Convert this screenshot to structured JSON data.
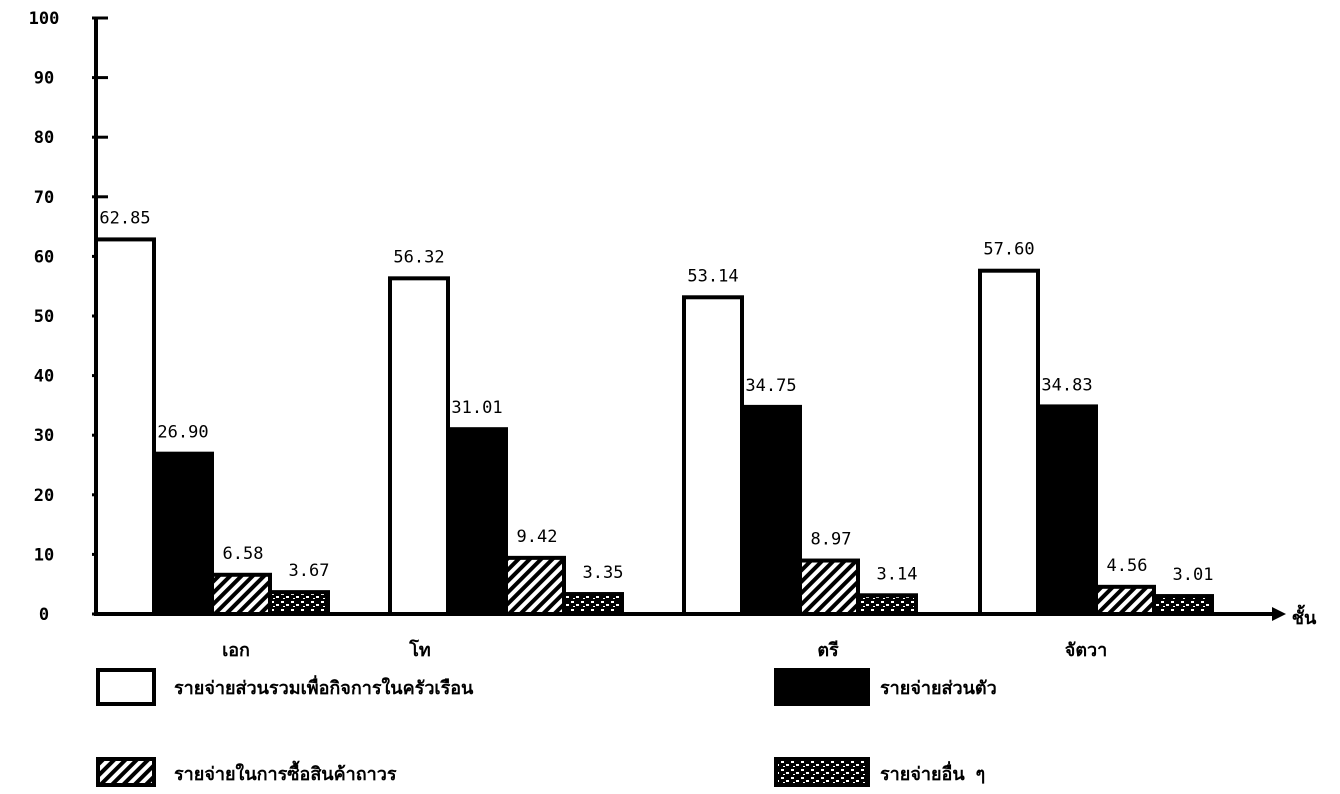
{
  "chart_data": {
    "type": "bar",
    "categories": [
      "เอก",
      "โท",
      "ตรี",
      "จัตวา"
    ],
    "series": [
      {
        "name": "รายจ่ายส่วนรวมเพื่อกิจการในครัวเรือน",
        "values": [
          62.85,
          56.32,
          53.14,
          57.6
        ],
        "labels": [
          "62.85",
          "56.32",
          "53.14",
          "57.60"
        ],
        "fill": "#ffffff",
        "pattern": "none"
      },
      {
        "name": "รายจ่ายส่วนตัว",
        "values": [
          26.9,
          31.01,
          34.75,
          34.83
        ],
        "labels": [
          "26.90",
          "31.01",
          "34.75",
          "34.83"
        ],
        "fill": "#000000",
        "pattern": "solid"
      },
      {
        "name": "รายจ่ายในการซื้อสินค้าถาวร",
        "values": [
          6.58,
          9.42,
          8.97,
          4.56
        ],
        "labels": [
          "6.58",
          "9.42",
          "8.97",
          "4.56"
        ],
        "fill": "#000000",
        "pattern": "hatch"
      },
      {
        "name": "รายจ่ายอื่น ๆ",
        "values": [
          3.67,
          3.35,
          3.14,
          3.01
        ],
        "labels": [
          "3.67",
          "3.35",
          "3.14",
          "3.01"
        ],
        "fill": "#000000",
        "pattern": "speckle"
      }
    ],
    "ylim": [
      0,
      100
    ],
    "yticks": [
      "0",
      "10",
      "20",
      "30",
      "40",
      "50",
      "60",
      "70",
      "80",
      "90",
      "100"
    ],
    "xlabel": "ชั้น",
    "ylabel": "",
    "title": "",
    "legend": "bottom",
    "grid": false
  }
}
